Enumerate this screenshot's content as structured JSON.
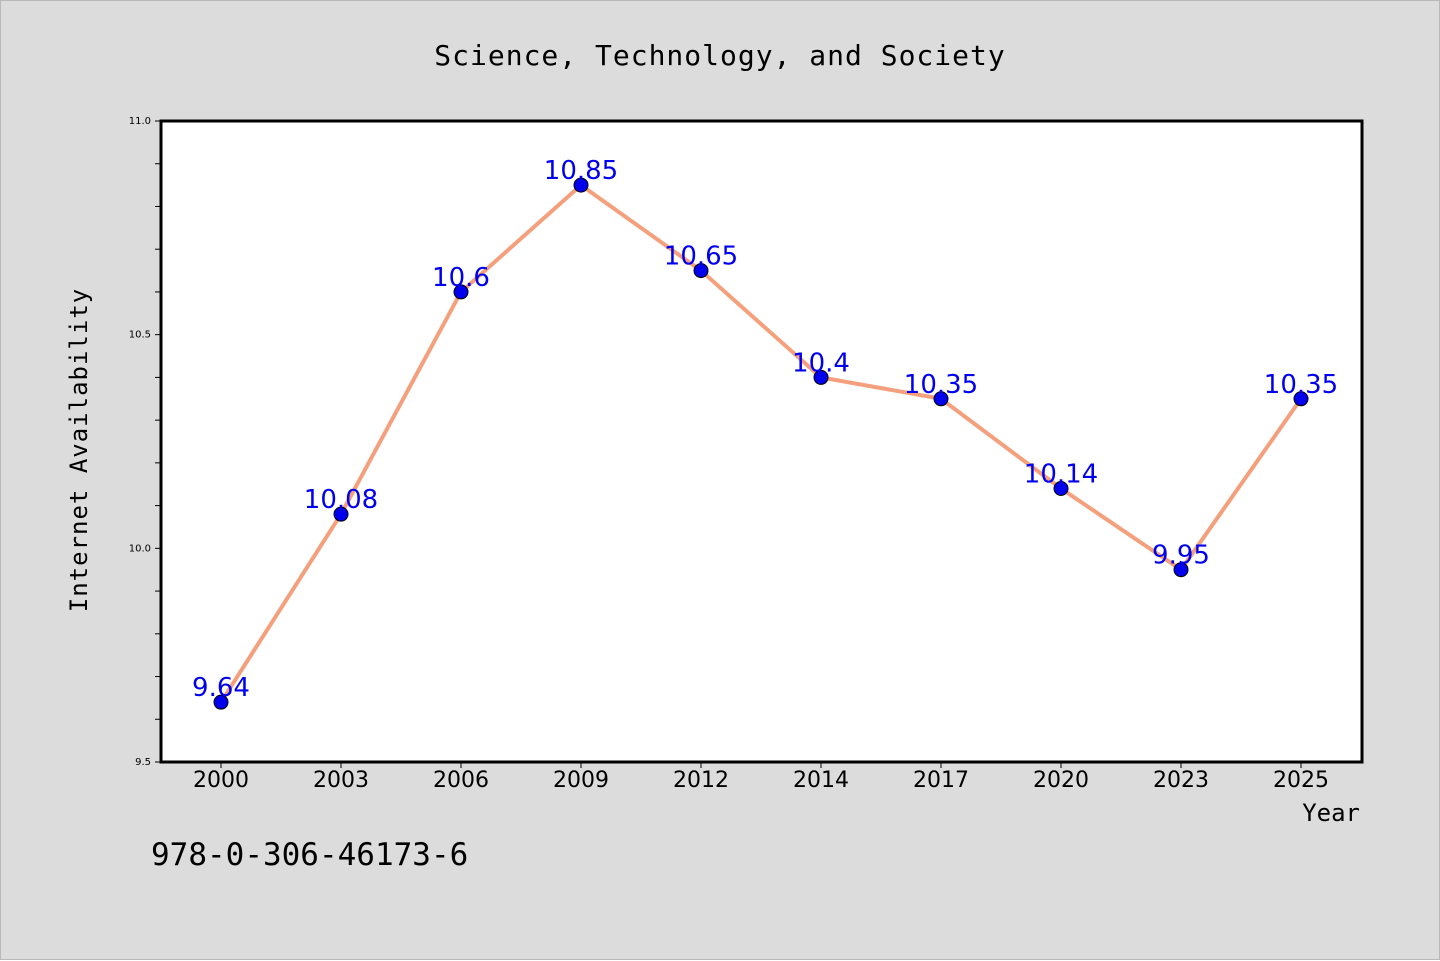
{
  "chart_data": {
    "type": "line",
    "title": "Science, Technology, and Society",
    "xlabel": "Year",
    "ylabel": "Internet Availability",
    "categories": [
      "2000",
      "2003",
      "2006",
      "2009",
      "2012",
      "2014",
      "2017",
      "2020",
      "2023",
      "2025"
    ],
    "series": [
      {
        "values": [
          9.64,
          10.08,
          10.6,
          10.85,
          10.65,
          10.4,
          10.35,
          10.14,
          9.95,
          10.35
        ],
        "labels": [
          "9.64",
          "10.08",
          "10.6",
          "10.85",
          "10.65",
          "10.4",
          "10.35",
          "10.14",
          "9.95",
          "10.35"
        ]
      }
    ],
    "ylim": [
      9.5,
      11.0
    ],
    "yticks": [
      9.5,
      10.0,
      10.5,
      11.0
    ],
    "ytick_labels": [
      "9.5",
      "10.0",
      "10.5",
      "11.0"
    ],
    "grid": false,
    "colors": {
      "line": "#f4a07d",
      "marker": "#0000ee",
      "data_label": "#0000ee",
      "figure_bg": "#dcdcdc",
      "plot_bg": "#ffffff"
    }
  },
  "annotation": "978-0-306-46173-6"
}
